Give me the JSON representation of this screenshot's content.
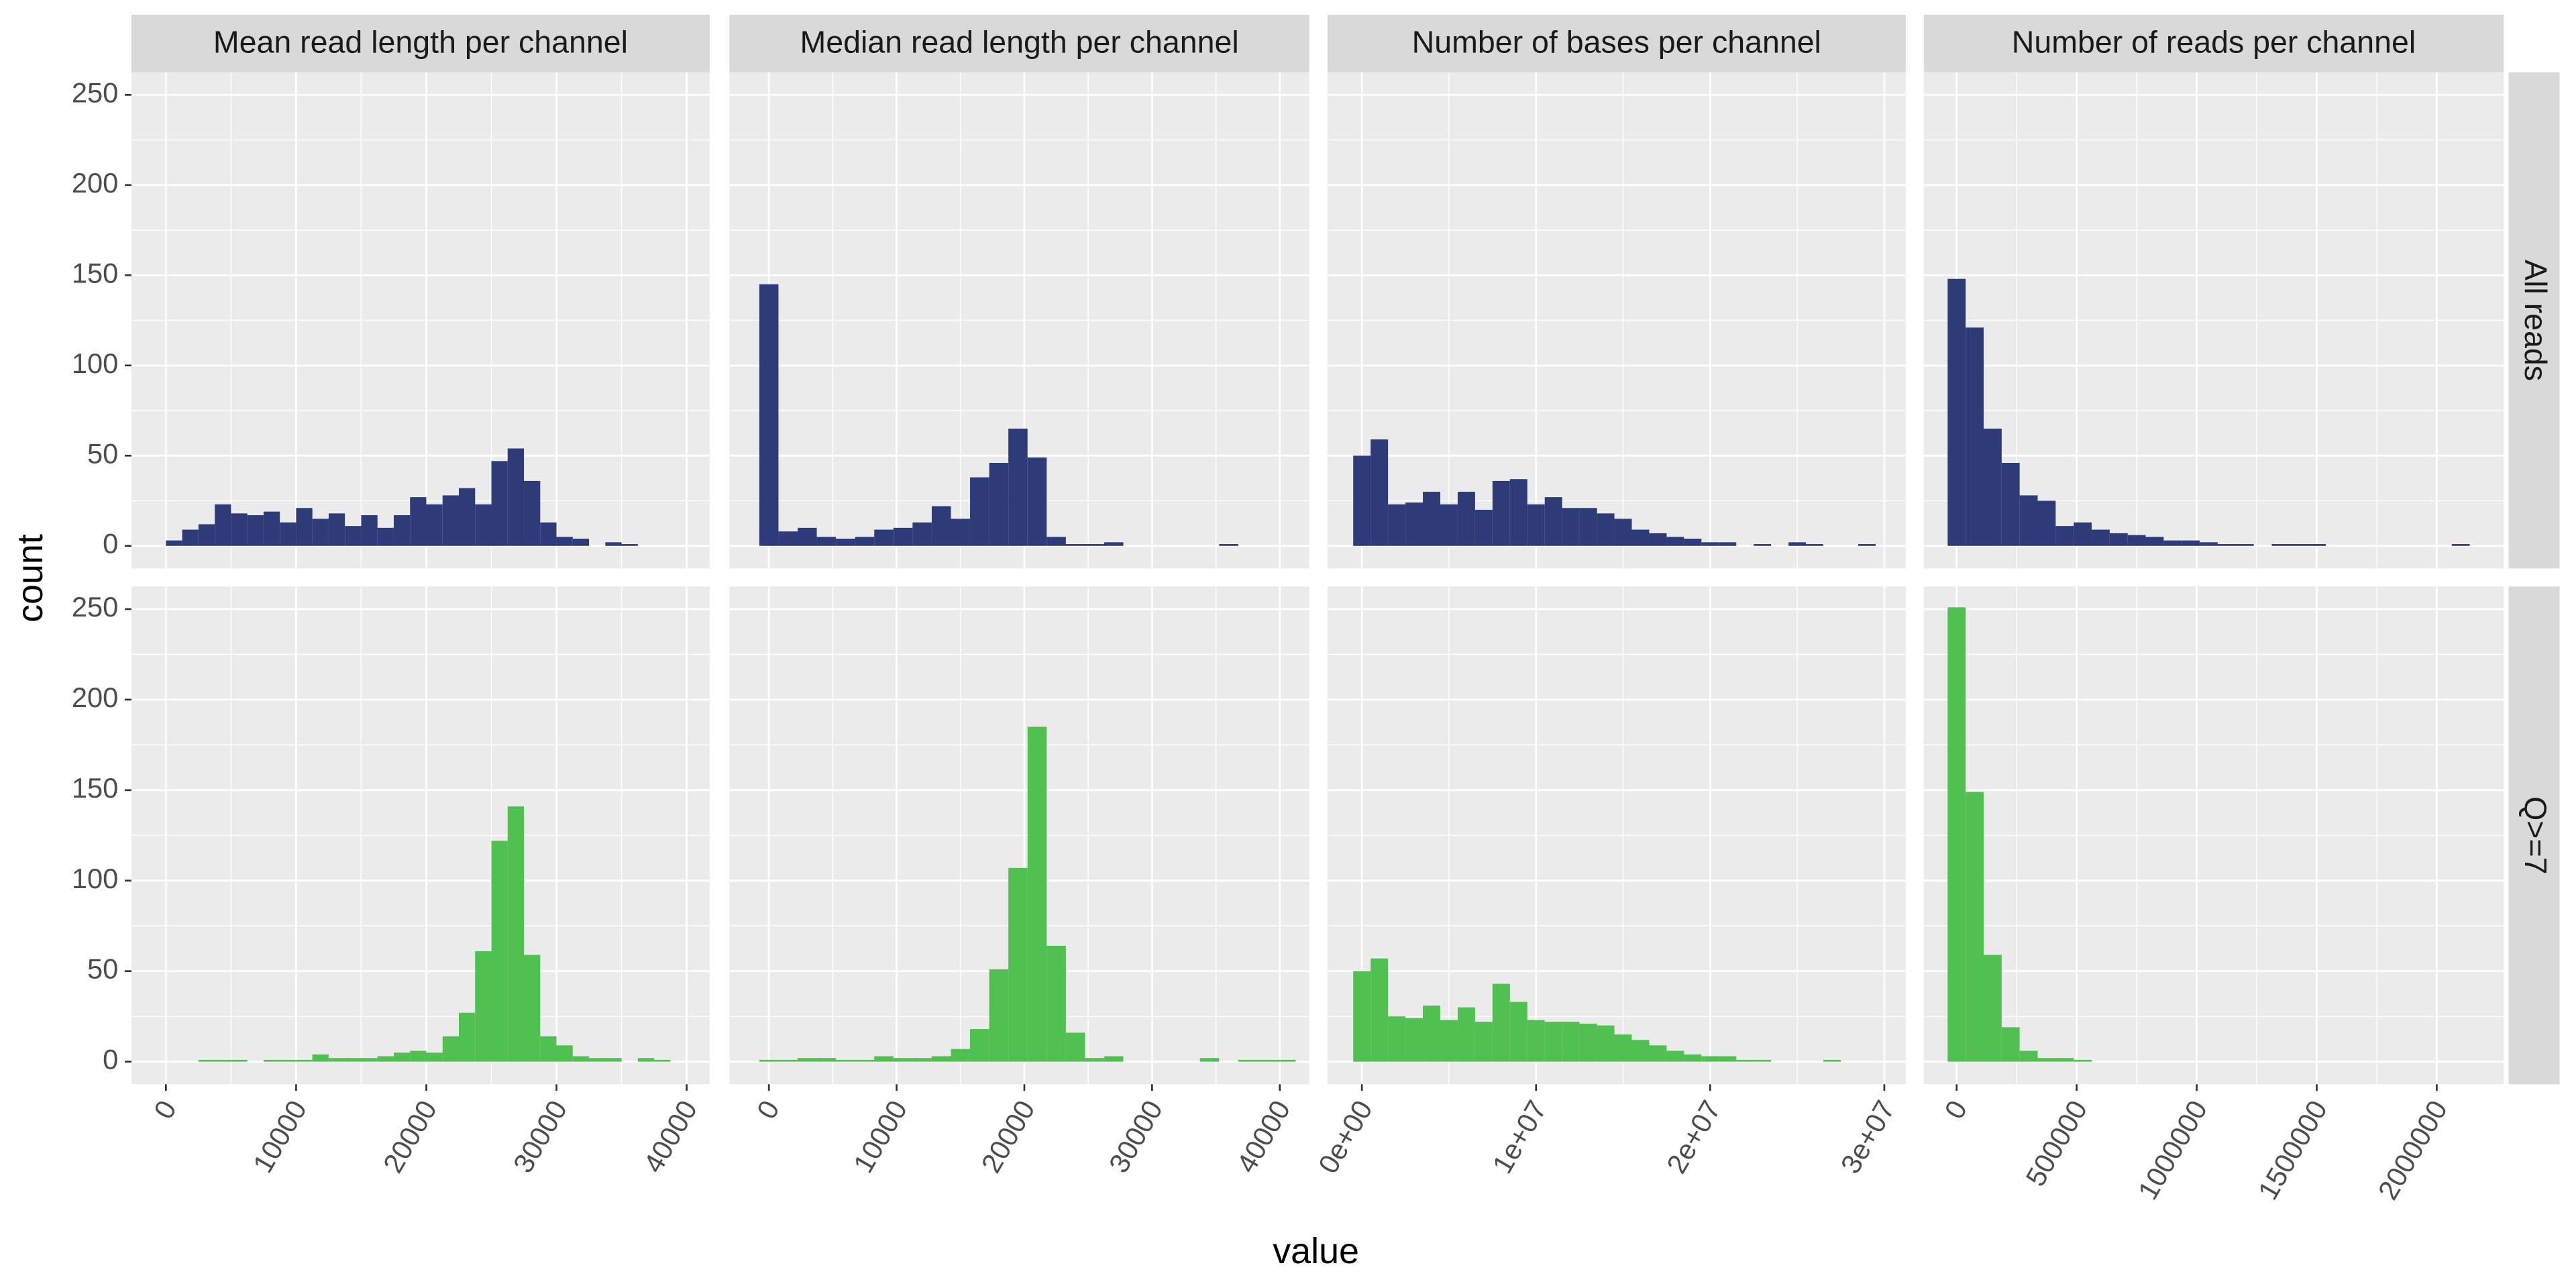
{
  "chart_data": {
    "type": "histogram",
    "x_label": "value",
    "y_label": "count",
    "ylim": [
      -12.5,
      262.5
    ],
    "yticks": [
      0,
      50,
      100,
      150,
      200,
      250
    ],
    "grid": true,
    "columns": [
      {
        "title": "Mean read length per channel",
        "xlim": [
          -2650,
          41770
        ],
        "xticks": [
          0,
          10000,
          20000,
          30000,
          40000
        ],
        "bins": [
          0,
          1250,
          2500,
          3750,
          5000,
          6250,
          7500,
          8750,
          10000,
          11250,
          12500,
          13750,
          15000,
          16250,
          17500,
          18750,
          20000,
          21250,
          22500,
          23750,
          25000,
          26250,
          27500,
          28750,
          30000,
          31250,
          32500,
          33750,
          35000,
          36250,
          37500,
          38750,
          40000,
          41250
        ]
      },
      {
        "title": "Median read length per channel",
        "xlim": [
          -3090,
          42315
        ],
        "xticks": [
          0,
          10000,
          20000,
          30000,
          40000
        ],
        "bins": [
          -750,
          750,
          2250,
          3750,
          5250,
          6750,
          8250,
          9750,
          11250,
          12750,
          14250,
          15750,
          17250,
          18750,
          20250,
          21750,
          23250,
          24750,
          26250,
          27750,
          29250,
          30750,
          32250,
          33750,
          35250,
          36750,
          38250,
          39750,
          41250
        ]
      },
      {
        "title": "Number of bases per channel",
        "xlim": [
          -1980000,
          31230000
        ],
        "xticks": [
          {
            "value": 0,
            "label": "0e+00"
          },
          {
            "value": 10000000,
            "label": "1e+07"
          },
          {
            "value": 20000000,
            "label": "2e+07"
          },
          {
            "value": 30000000,
            "label": "3e+07"
          }
        ],
        "bins": [
          -500000,
          500000,
          1500000,
          2500000,
          3500000,
          4500000,
          5500000,
          6500000,
          7500000,
          8500000,
          9500000,
          10500000,
          11500000,
          12500000,
          13500000,
          14500000,
          15500000,
          16500000,
          17500000,
          18500000,
          19500000,
          20500000,
          21500000,
          22500000,
          23500000,
          24500000,
          25500000,
          26500000,
          27500000,
          28500000,
          29500000
        ]
      },
      {
        "title": "Number of reads per channel",
        "xlim": [
          -136900,
          2279000
        ],
        "xticks": [
          0,
          500000,
          1000000,
          1500000,
          2000000
        ],
        "bins": [
          -37500,
          37500,
          112500,
          187500,
          262500,
          337500,
          412500,
          487500,
          562500,
          637500,
          712500,
          787500,
          862500,
          937500,
          1012500,
          1087500,
          1162500,
          1237500,
          1312500,
          1387500,
          1462500,
          1537500,
          1612500,
          1687500,
          1762500,
          1837500,
          1912500,
          1987500,
          2062500,
          2137500
        ]
      }
    ],
    "rows": [
      {
        "label": "All reads",
        "color": "#2d3c79",
        "counts": [
          [
            3,
            9,
            12,
            23,
            18,
            17,
            19,
            13,
            21,
            15,
            18,
            11,
            17,
            10,
            17,
            27,
            23,
            28,
            32,
            23,
            47,
            54,
            36,
            13,
            5,
            4,
            0,
            2,
            1,
            0,
            0,
            0,
            0
          ],
          [
            145,
            8,
            10,
            5,
            4,
            5,
            9,
            10,
            13,
            22,
            15,
            38,
            46,
            65,
            49,
            5,
            1,
            1,
            2,
            0,
            0,
            0,
            0,
            0,
            1,
            0,
            0,
            0
          ],
          [
            50,
            59,
            23,
            24,
            30,
            23,
            30,
            20,
            36,
            37,
            23,
            27,
            21,
            21,
            18,
            15,
            9,
            7,
            5,
            4,
            2,
            2,
            0,
            1,
            0,
            2,
            1,
            0,
            0,
            1
          ],
          [
            148,
            121,
            65,
            46,
            28,
            25,
            11,
            13,
            9,
            7,
            6,
            5,
            3,
            3,
            2,
            1,
            1,
            0,
            1,
            1,
            1,
            0,
            0,
            0,
            0,
            0,
            0,
            0,
            1
          ]
        ]
      },
      {
        "label": "Q>=7",
        "color": "#50c050",
        "counts": [
          [
            0,
            0,
            1,
            1,
            1,
            0,
            1,
            1,
            1,
            4,
            2,
            2,
            2,
            3,
            5,
            6,
            5,
            14,
            27,
            61,
            122,
            141,
            59,
            14,
            9,
            3,
            2,
            2,
            0,
            2,
            1,
            0,
            0
          ],
          [
            1,
            1,
            2,
            2,
            1,
            1,
            3,
            2,
            2,
            3,
            7,
            18,
            51,
            107,
            185,
            64,
            16,
            2,
            3,
            0,
            0,
            0,
            0,
            2,
            0,
            1,
            1,
            1
          ],
          [
            50,
            57,
            25,
            24,
            31,
            23,
            30,
            22,
            43,
            33,
            23,
            22,
            22,
            21,
            20,
            15,
            12,
            9,
            6,
            4,
            3,
            3,
            1,
            1,
            0,
            0,
            0,
            1,
            0,
            0
          ],
          [
            251,
            149,
            59,
            19,
            6,
            2,
            2,
            1,
            0,
            0,
            0,
            0,
            0,
            0,
            0,
            0,
            0,
            0,
            0,
            0,
            0,
            0,
            0,
            0,
            0,
            0,
            0,
            0,
            0
          ]
        ]
      }
    ]
  }
}
